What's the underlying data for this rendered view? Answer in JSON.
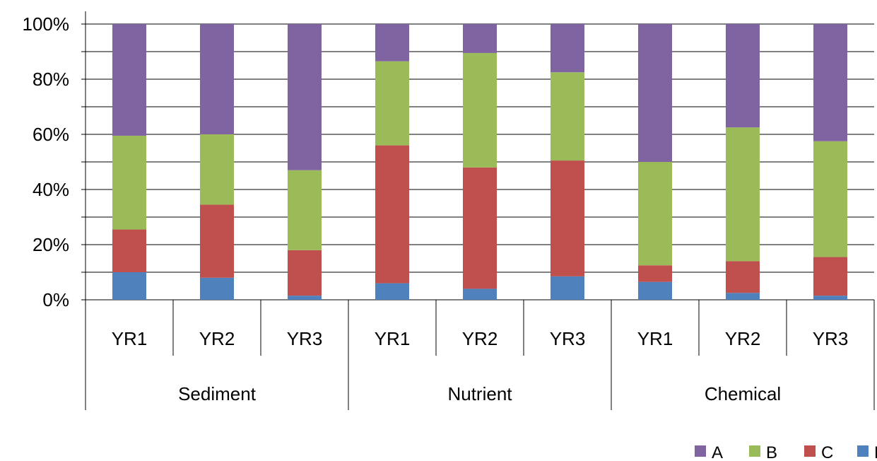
{
  "chart_data": {
    "type": "bar",
    "stacked": true,
    "percent_stacked": true,
    "groups": [
      {
        "label": "Sediment",
        "categories": [
          "YR1",
          "YR2",
          "YR3"
        ]
      },
      {
        "label": "Nutrient",
        "categories": [
          "YR1",
          "YR2",
          "YR3"
        ]
      },
      {
        "label": "Chemical",
        "categories": [
          "YR1",
          "YR2",
          "YR3"
        ]
      }
    ],
    "series": [
      {
        "name": "D",
        "color": "#4f81bd",
        "values": [
          10,
          8,
          1.5,
          6,
          4,
          8.5,
          6.5,
          2.5,
          1.5
        ]
      },
      {
        "name": "C",
        "color": "#c0504d",
        "values": [
          15.5,
          26.5,
          16.5,
          50,
          44,
          42,
          6,
          11.5,
          14
        ]
      },
      {
        "name": "B",
        "color": "#9bbb59",
        "values": [
          34,
          25.5,
          29,
          30.5,
          41.5,
          32,
          37.5,
          48.5,
          42
        ]
      },
      {
        "name": "A",
        "color": "#8064a2",
        "values": [
          40.5,
          40,
          53,
          13.5,
          10.5,
          17.5,
          50,
          37.5,
          42.5
        ]
      }
    ],
    "ylim": [
      0,
      100
    ],
    "yticks": [
      "0%",
      "20%",
      "40%",
      "60%",
      "80%",
      "100%"
    ],
    "grid": true,
    "legend": {
      "position": "bottom-right",
      "order": [
        "A",
        "B",
        "C",
        "D"
      ]
    },
    "title": "",
    "xlabel": "",
    "ylabel": ""
  }
}
